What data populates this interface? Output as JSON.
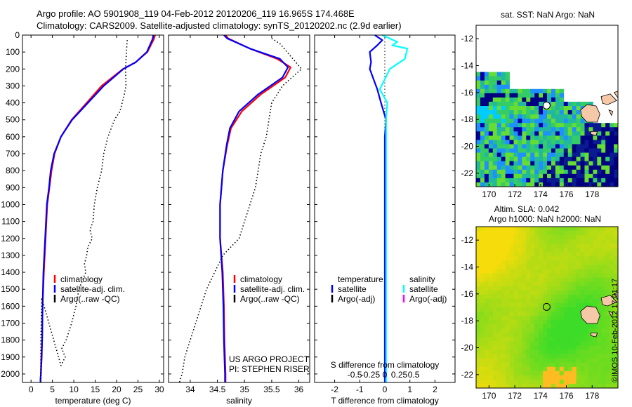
{
  "title": {
    "line1": "Argo profile: AO 5901908_119 04-Feb-2012 20120206_119 16.965S 174.468E",
    "line2": "Climatology: CARS2009. Satellite-adjusted climatology: synTS_20120202.nc (2.9d earlier)"
  },
  "stamp": "©IMOS 10-Feb-2012 17:01:17",
  "colors": {
    "climatology": "#ff0000",
    "satellite": "#0000ff",
    "argo": "#000000",
    "sal_satellite": "#00ffff",
    "sal_argo": "#ff00ff",
    "frame": "#000000"
  },
  "chart_data": [
    {
      "type": "line",
      "id": "temperature",
      "xlabel": "temperature (deg C)",
      "ylabel": "",
      "xlim": [
        -2,
        31
      ],
      "ylim": [
        2050,
        0
      ],
      "xticks": [
        0,
        5,
        10,
        15,
        20,
        25,
        30
      ],
      "yticks": [
        0,
        100,
        200,
        300,
        400,
        500,
        600,
        700,
        800,
        900,
        1000,
        1100,
        1200,
        1300,
        1400,
        1500,
        1600,
        1700,
        1800,
        1900,
        2000
      ],
      "legend": [
        "climatology",
        "satellite-adj. clim.",
        "Argo(..raw -QC)"
      ],
      "series": [
        {
          "name": "climatology",
          "style": "climatology",
          "x": [
            29.0,
            28.7,
            27.2,
            24.5,
            21.5,
            16.5,
            13.0,
            9.5,
            7.0,
            5.5,
            4.8,
            4.3,
            3.8,
            3.4,
            3.0,
            2.7,
            2.6,
            2.4,
            2.3,
            2.2,
            2.2
          ],
          "y": [
            0,
            25,
            100,
            160,
            200,
            300,
            400,
            500,
            600,
            700,
            800,
            900,
            1000,
            1200,
            1400,
            1600,
            1800,
            1900,
            2000,
            2040,
            2050
          ]
        },
        {
          "name": "satellite-adj. clim.",
          "style": "satellite",
          "x": [
            28.6,
            28.4,
            27.1,
            24.5,
            21.6,
            17.0,
            13.3,
            9.6,
            7.0,
            5.4,
            4.6,
            4.2,
            3.7,
            3.3,
            2.9,
            2.7,
            2.6,
            2.5,
            2.3,
            2.2,
            2.2
          ],
          "y": [
            0,
            25,
            100,
            160,
            200,
            300,
            400,
            500,
            600,
            700,
            800,
            900,
            1000,
            1200,
            1400,
            1600,
            1800,
            1900,
            2000,
            2040,
            2050
          ]
        },
        {
          "name": "Argo(..raw -QC)",
          "style": "argo",
          "x": [
            22.5,
            22.3,
            22.1,
            22.2,
            21.8,
            20.8,
            19.5,
            18.0,
            17.0,
            16.5,
            15.5,
            14.8,
            14.5,
            13.8,
            14.3,
            13.3,
            13.0,
            12.5,
            12.8,
            12.0,
            11.2,
            10.5,
            9.5,
            8.2,
            7.2,
            8.0,
            7.0,
            2.5,
            2.3,
            2.3
          ],
          "y": [
            30,
            100,
            200,
            300,
            350,
            450,
            500,
            600,
            700,
            800,
            900,
            1000,
            1100,
            1150,
            1200,
            1250,
            1300,
            1350,
            1400,
            1450,
            1500,
            1600,
            1700,
            1800,
            1850,
            1900,
            1950,
            1550,
            1800,
            2050
          ]
        }
      ]
    },
    {
      "type": "line",
      "id": "salinity",
      "xlabel": "salinity",
      "ylabel": "",
      "xlim": [
        33.6,
        36.2
      ],
      "ylim": [
        2050,
        0
      ],
      "xticks": [
        34,
        34.5,
        35,
        35.5,
        36
      ],
      "legend": [
        "climatology",
        "satellite-adj. clim.",
        "Argo(..raw -QC)"
      ],
      "annotations": [
        "US ARGO PROJECT",
        "PI: STEPHEN RISER"
      ],
      "series": [
        {
          "name": "climatology",
          "style": "climatology",
          "x": [
            34.65,
            34.7,
            35.1,
            35.6,
            35.85,
            35.75,
            35.3,
            34.95,
            34.75,
            34.68,
            34.6,
            34.55,
            34.55,
            34.6,
            34.62,
            34.63,
            34.64,
            34.65,
            34.65
          ],
          "y": [
            0,
            20,
            80,
            140,
            190,
            250,
            350,
            450,
            550,
            650,
            800,
            1000,
            1200,
            1400,
            1600,
            1800,
            1900,
            2000,
            2050
          ]
        },
        {
          "name": "satellite-adj. clim.",
          "style": "satellite",
          "x": [
            34.62,
            34.68,
            35.1,
            35.65,
            35.8,
            35.7,
            35.25,
            34.9,
            34.73,
            34.67,
            34.6,
            34.55,
            34.55,
            34.59,
            34.61,
            34.62,
            34.63,
            34.64,
            34.64
          ],
          "y": [
            0,
            20,
            80,
            140,
            190,
            250,
            350,
            450,
            550,
            650,
            800,
            1000,
            1200,
            1400,
            1600,
            1800,
            1900,
            2000,
            2050
          ]
        },
        {
          "name": "Argo(..raw -QC)",
          "style": "argo",
          "x": [
            35.5,
            35.65,
            36.05,
            35.7,
            35.5,
            35.45,
            35.4,
            35.3,
            35.25,
            35.2,
            35.1,
            35.0,
            34.9,
            34.75,
            34.6,
            34.45,
            34.3,
            34.2,
            34.1,
            34.0,
            33.9,
            33.85,
            33.8
          ],
          "y": [
            20,
            50,
            200,
            300,
            400,
            500,
            600,
            700,
            800,
            900,
            1000,
            1100,
            1200,
            1250,
            1300,
            1400,
            1500,
            1600,
            1700,
            1800,
            1900,
            2000,
            2050
          ]
        }
      ]
    },
    {
      "type": "line",
      "id": "difference",
      "xlabel": "T difference from climatology",
      "x2label": "S difference from climatology",
      "xlim": [
        -2.8,
        2.8
      ],
      "ylim": [
        2050,
        0
      ],
      "xticks": [
        -2,
        -1,
        0,
        1,
        2
      ],
      "x2ticks_labels": [
        "-0.5",
        "-0.25",
        "0",
        "0.25",
        "0.5"
      ],
      "legend": {
        "temperature": "temperature",
        "salinity": "salinity",
        "t_sat": "satellite",
        "t_argo": "Argo(-adj)",
        "s_sat": "satellite",
        "s_argo": "Argo(-adj)"
      },
      "series": [
        {
          "name": "temperature satellite",
          "style": "satellite",
          "x": [
            -0.4,
            -0.1,
            -0.3,
            -0.6,
            -0.55,
            -0.6,
            -0.45,
            -0.3,
            -0.15,
            -0.05,
            0.05,
            0.0,
            0.0,
            0.0,
            0.0,
            0.0,
            0.0
          ],
          "y": [
            0,
            30,
            60,
            100,
            160,
            200,
            260,
            320,
            400,
            450,
            500,
            600,
            800,
            1200,
            1600,
            2000,
            2050
          ]
        },
        {
          "name": "salinity satellite",
          "style": "sal_satellite",
          "x": [
            -0.1,
            0.5,
            0.3,
            0.9,
            0.8,
            0.2,
            0.0,
            -0.2,
            0.1,
            0.05,
            0.05,
            0.05,
            0.05,
            0.05,
            0.05
          ],
          "y": [
            0,
            40,
            60,
            80,
            140,
            200,
            260,
            320,
            400,
            480,
            600,
            800,
            1200,
            1600,
            2050
          ]
        }
      ]
    },
    {
      "type": "heatmap",
      "id": "sst_map",
      "title": "sat. SST: NaN Argo: NaN",
      "xlim": [
        169,
        180
      ],
      "ylim": [
        -23,
        -11
      ],
      "xticks": [
        170,
        172,
        174,
        176,
        178
      ],
      "yticks": [
        -12,
        -14,
        -16,
        -18,
        -20,
        -22
      ],
      "marker": {
        "lon": 174.468,
        "lat": -16.965
      }
    },
    {
      "type": "heatmap",
      "id": "sla_map",
      "title": "Altim. SLA: 0.042",
      "subtitle": "Argo h1000: NaN h2000: NaN",
      "xlim": [
        169,
        180
      ],
      "ylim": [
        -23,
        -11
      ],
      "xticks": [
        170,
        172,
        174,
        176,
        178
      ],
      "yticks": [
        -12,
        -14,
        -16,
        -18,
        -20,
        -22
      ],
      "marker": {
        "lon": 174.468,
        "lat": -16.965
      }
    }
  ]
}
